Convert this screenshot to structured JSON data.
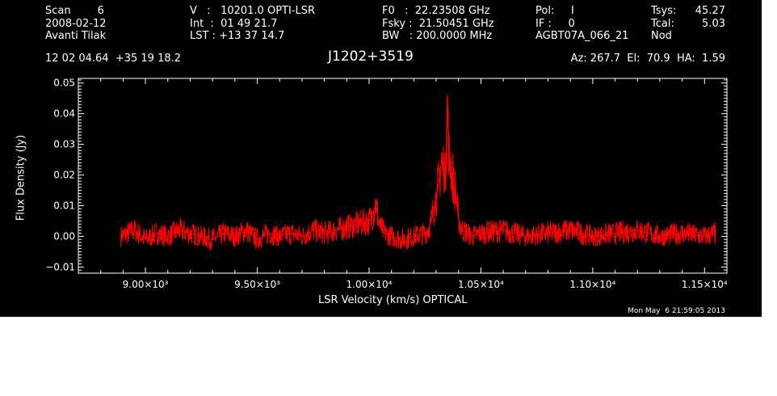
{
  "header": {
    "col1": [
      "Scan        6",
      "2008-02-12",
      "Avanti Tilak"
    ],
    "col2": [
      "V   :   10201.0 OPTI-LSR",
      "Int  :  01 49 21.7",
      "LST : +13 37 14.7"
    ],
    "col3": [
      "F0   :  22.23508 GHz",
      "Fsky :  21.50451 GHz",
      "BW   : 200.0000 MHz"
    ],
    "col4": [
      "Pol:     I",
      "IF :     0",
      "AGBT07A_066_21"
    ],
    "col5_labels": [
      "Tsys:",
      "Tcal:",
      "Nod"
    ],
    "col5_values": [
      "45.27",
      "5.03"
    ],
    "coords": "12 02 04.64  +35 19 18.2",
    "source": "J1202+3519",
    "azel": "Az: 267.7  El:  70.9  HA:  1.59",
    "timestamp": "Mon May  6 21:59:05 2013"
  },
  "colors": {
    "background": "#000000",
    "foreground": "#ffffff",
    "series": "#ff0000"
  },
  "chart_data": {
    "type": "line",
    "xlabel": "LSR Velocity (km/s) OPTICAL",
    "ylabel": "Flux Density (Jy)",
    "xlim": [
      8700,
      11600
    ],
    "ylim": [
      -0.012,
      0.0515
    ],
    "x_ticks": [
      9000,
      9500,
      10000,
      10500,
      11000,
      11500
    ],
    "x_tick_labels": [
      "9.00×10³",
      "9.50×10³",
      "1.00×10⁴",
      "1.05×10⁴",
      "1.10×10⁴",
      "1.15×10⁴"
    ],
    "y_ticks": [
      -0.01,
      0.0,
      0.01,
      0.02,
      0.03,
      0.04,
      0.05
    ],
    "y_tick_labels": [
      "−0.01",
      "0.00",
      "0.01",
      "0.02",
      "0.03",
      "0.04",
      "0.05"
    ],
    "grid": false,
    "series": [
      {
        "x": [
          8890,
          8950,
          9000,
          9050,
          9100,
          9150,
          9200,
          9250,
          9300,
          9350,
          9400,
          9450,
          9500,
          9550,
          9600,
          9650,
          9700,
          9750,
          9800,
          9850,
          9900,
          9950,
          10000,
          10010,
          10020,
          10030,
          10040,
          10050,
          10060,
          10070,
          10100,
          10150,
          10200,
          10250,
          10270,
          10280,
          10290,
          10300,
          10310,
          10320,
          10325,
          10330,
          10335,
          10340,
          10345,
          10350,
          10355,
          10360,
          10365,
          10370,
          10375,
          10380,
          10385,
          10390,
          10395,
          10400,
          10410,
          10420,
          10440,
          10460,
          10500,
          10600,
          10700,
          10800,
          10900,
          11000,
          11100,
          11200,
          11300,
          11400,
          11500,
          11550
        ],
        "values": [
          0.0,
          0.002,
          -0.001,
          0.001,
          0.0,
          0.002,
          0.001,
          0.0,
          -0.001,
          0.001,
          0.0,
          0.002,
          -0.001,
          0.001,
          0.0,
          0.001,
          0.0,
          0.002,
          0.001,
          0.002,
          0.003,
          0.004,
          0.005,
          0.006,
          0.008,
          0.011,
          0.006,
          0.003,
          0.002,
          0.001,
          0.0,
          -0.001,
          0.0,
          0.001,
          0.003,
          0.006,
          0.009,
          0.013,
          0.017,
          0.022,
          0.026,
          0.021,
          0.024,
          0.019,
          0.028,
          0.044,
          0.031,
          0.022,
          0.025,
          0.018,
          0.02,
          0.014,
          0.016,
          0.012,
          0.009,
          0.006,
          0.003,
          0.002,
          0.001,
          0.0,
          0.001,
          0.002,
          0.0,
          0.001,
          0.002,
          0.0,
          0.001,
          0.002,
          0.0,
          0.001,
          0.0,
          0.001
        ]
      }
    ]
  }
}
